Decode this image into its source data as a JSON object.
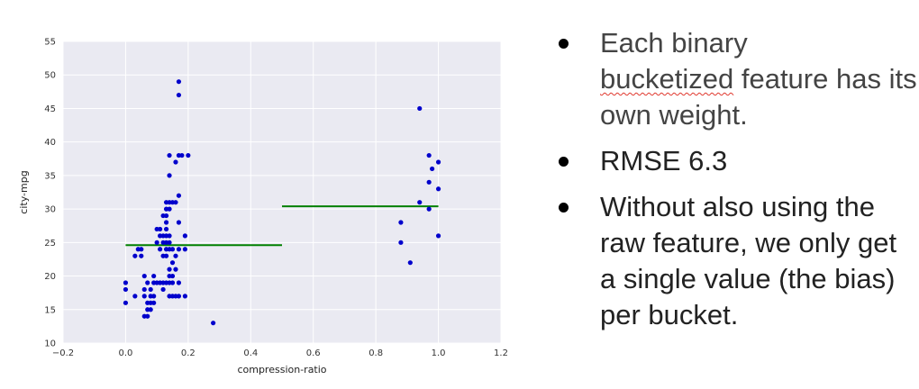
{
  "chart_data": {
    "type": "scatter",
    "xlabel": "compression-ratio",
    "ylabel": "city-mpg",
    "xlim": [
      -0.2,
      1.2
    ],
    "ylim": [
      10,
      55
    ],
    "xticks": [
      -0.2,
      0.0,
      0.2,
      0.4,
      0.6,
      0.8,
      1.0,
      1.2
    ],
    "xtick_labels": [
      "−0.2",
      "0.0",
      "0.2",
      "0.4",
      "0.6",
      "0.8",
      "1.0",
      "1.2"
    ],
    "yticks": [
      10,
      15,
      20,
      25,
      30,
      35,
      40,
      45,
      50,
      55
    ],
    "ytick_labels": [
      "10",
      "15",
      "20",
      "25",
      "30",
      "35",
      "40",
      "45",
      "50",
      "55"
    ],
    "grid": true,
    "background": "#EAEAF2",
    "point_color": "#0000cc",
    "line_color": "#008000",
    "points": [
      [
        0.0,
        16
      ],
      [
        0.0,
        18
      ],
      [
        0.0,
        19
      ],
      [
        0.03,
        17
      ],
      [
        0.03,
        23
      ],
      [
        0.04,
        24
      ],
      [
        0.05,
        23
      ],
      [
        0.05,
        24
      ],
      [
        0.06,
        17
      ],
      [
        0.06,
        18
      ],
      [
        0.06,
        20
      ],
      [
        0.06,
        14
      ],
      [
        0.07,
        14
      ],
      [
        0.07,
        15
      ],
      [
        0.07,
        16
      ],
      [
        0.07,
        19
      ],
      [
        0.08,
        15
      ],
      [
        0.08,
        16
      ],
      [
        0.08,
        17
      ],
      [
        0.08,
        18
      ],
      [
        0.09,
        16
      ],
      [
        0.09,
        17
      ],
      [
        0.09,
        19
      ],
      [
        0.09,
        20
      ],
      [
        0.1,
        19
      ],
      [
        0.1,
        25
      ],
      [
        0.1,
        27
      ],
      [
        0.11,
        19
      ],
      [
        0.11,
        24
      ],
      [
        0.11,
        26
      ],
      [
        0.11,
        27
      ],
      [
        0.12,
        18
      ],
      [
        0.12,
        19
      ],
      [
        0.12,
        23
      ],
      [
        0.12,
        25
      ],
      [
        0.12,
        26
      ],
      [
        0.12,
        29
      ],
      [
        0.13,
        19
      ],
      [
        0.13,
        23
      ],
      [
        0.13,
        24
      ],
      [
        0.13,
        25
      ],
      [
        0.13,
        26
      ],
      [
        0.13,
        27
      ],
      [
        0.13,
        28
      ],
      [
        0.13,
        29
      ],
      [
        0.13,
        30
      ],
      [
        0.13,
        31
      ],
      [
        0.14,
        17
      ],
      [
        0.14,
        19
      ],
      [
        0.14,
        20
      ],
      [
        0.14,
        21
      ],
      [
        0.14,
        24
      ],
      [
        0.14,
        25
      ],
      [
        0.14,
        26
      ],
      [
        0.14,
        30
      ],
      [
        0.14,
        31
      ],
      [
        0.14,
        35
      ],
      [
        0.14,
        38
      ],
      [
        0.15,
        17
      ],
      [
        0.15,
        19
      ],
      [
        0.15,
        20
      ],
      [
        0.15,
        22
      ],
      [
        0.15,
        24
      ],
      [
        0.15,
        31
      ],
      [
        0.16,
        17
      ],
      [
        0.16,
        21
      ],
      [
        0.16,
        23
      ],
      [
        0.16,
        31
      ],
      [
        0.16,
        37
      ],
      [
        0.17,
        17
      ],
      [
        0.17,
        19
      ],
      [
        0.17,
        24
      ],
      [
        0.17,
        28
      ],
      [
        0.17,
        32
      ],
      [
        0.17,
        38
      ],
      [
        0.17,
        47
      ],
      [
        0.17,
        49
      ],
      [
        0.18,
        38
      ],
      [
        0.19,
        17
      ],
      [
        0.19,
        24
      ],
      [
        0.19,
        26
      ],
      [
        0.2,
        38
      ],
      [
        0.28,
        13
      ],
      [
        0.88,
        25
      ],
      [
        0.88,
        28
      ],
      [
        0.91,
        22
      ],
      [
        0.94,
        31
      ],
      [
        0.94,
        45
      ],
      [
        0.97,
        30
      ],
      [
        0.97,
        34
      ],
      [
        0.97,
        38
      ],
      [
        0.98,
        36
      ],
      [
        1.0,
        26
      ],
      [
        1.0,
        33
      ],
      [
        1.0,
        37
      ]
    ],
    "segments": [
      {
        "x": [
          0.0,
          0.5
        ],
        "y": [
          24.6,
          24.6
        ]
      },
      {
        "x": [
          0.5,
          1.0
        ],
        "y": [
          30.4,
          30.4
        ]
      }
    ]
  },
  "bullets": [
    {
      "pre": "Each binary",
      "underlined": "bucketized",
      "post": "feature has its own weight."
    },
    {
      "text": "RMSE 6.3"
    },
    {
      "text": "Without also using the raw feature, we only get a single value (the bias) per bucket."
    }
  ]
}
